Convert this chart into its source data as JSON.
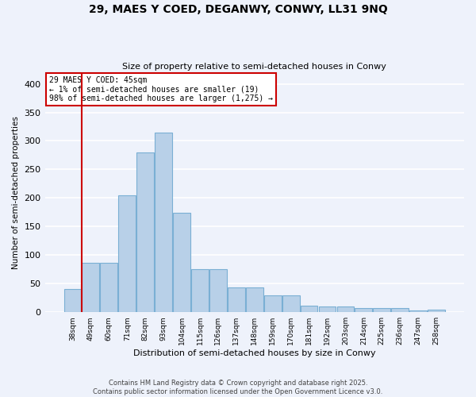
{
  "title1": "29, MAES Y COED, DEGANWY, CONWY, LL31 9NQ",
  "title2": "Size of property relative to semi-detached houses in Conwy",
  "xlabel": "Distribution of semi-detached houses by size in Conwy",
  "ylabel": "Number of semi-detached properties",
  "categories": [
    "38sqm",
    "49sqm",
    "60sqm",
    "71sqm",
    "82sqm",
    "93sqm",
    "104sqm",
    "115sqm",
    "126sqm",
    "137sqm",
    "148sqm",
    "159sqm",
    "170sqm",
    "181sqm",
    "192sqm",
    "203sqm",
    "214sqm",
    "225sqm",
    "236sqm",
    "247sqm",
    "258sqm"
  ],
  "values": [
    40,
    86,
    86,
    205,
    280,
    315,
    174,
    75,
    75,
    44,
    44,
    30,
    30,
    12,
    10,
    10,
    7,
    7,
    7,
    3,
    5
  ],
  "bar_color": "#b8d0e8",
  "bar_edge_color": "#7aafd4",
  "highlight_color": "#cc0000",
  "annotation_title": "29 MAES Y COED: 45sqm",
  "annotation_line1": "← 1% of semi-detached houses are smaller (19)",
  "annotation_line2": "98% of semi-detached houses are larger (1,275) →",
  "annotation_border_color": "#cc0000",
  "ylim": [
    0,
    420
  ],
  "yticks": [
    0,
    50,
    100,
    150,
    200,
    250,
    300,
    350,
    400
  ],
  "footer1": "Contains HM Land Registry data © Crown copyright and database right 2025.",
  "footer2": "Contains public sector information licensed under the Open Government Licence v3.0.",
  "bg_color": "#eef2fb",
  "grid_color": "#ffffff"
}
